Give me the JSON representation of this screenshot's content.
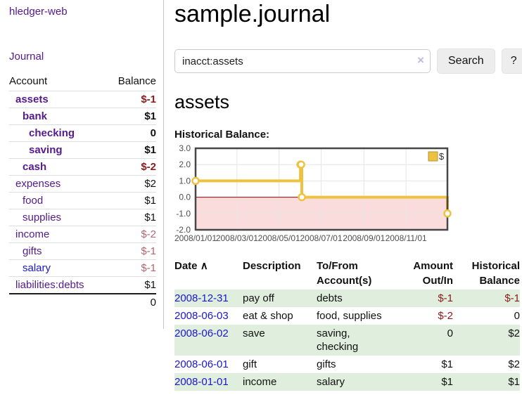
{
  "colors": {
    "purple_link": "#551a8b",
    "blue_link": "#1a16d1",
    "neg_strong": "#8b1a1a",
    "neg_dim": "#b5656f",
    "row_stripe_green": "#e0eedd",
    "chart_line_gold": "#edc240",
    "chart_point_fill": "#ffffff",
    "chart_negative_region": "#fbdcdc",
    "chart_zero_line": "#8b0000",
    "chart_grid": "#e6e6e6",
    "chart_border": "#474747"
  },
  "sidebar": {
    "brand": "hledger-web",
    "journal_link": "Journal",
    "accounts_header": {
      "account": "Account",
      "balance": "Balance"
    },
    "accounts": [
      {
        "name": "assets",
        "balance": "$-1",
        "indent": 1,
        "bold": true,
        "neg": "strong"
      },
      {
        "name": "bank",
        "balance": "$1",
        "indent": 2,
        "bold": true,
        "neg": "none"
      },
      {
        "name": "checking",
        "balance": "0",
        "indent": 3,
        "bold": true,
        "neg": "none"
      },
      {
        "name": "saving",
        "balance": "$1",
        "indent": 3,
        "bold": true,
        "neg": "none"
      },
      {
        "name": "cash",
        "balance": "$-2",
        "indent": 2,
        "bold": true,
        "neg": "strong"
      },
      {
        "name": "expenses",
        "balance": "$2",
        "indent": 1,
        "bold": false,
        "neg": "none"
      },
      {
        "name": "food",
        "balance": "$1",
        "indent": 2,
        "bold": false,
        "neg": "none"
      },
      {
        "name": "supplies",
        "balance": "$1",
        "indent": 2,
        "bold": false,
        "neg": "none"
      },
      {
        "name": "income",
        "balance": "$-2",
        "indent": 1,
        "bold": false,
        "neg": "dim"
      },
      {
        "name": "gifts",
        "balance": "$-1",
        "indent": 2,
        "bold": false,
        "neg": "dim"
      },
      {
        "name": "salary",
        "balance": "$-1",
        "indent": 2,
        "bold": false,
        "neg": "dim",
        "blue": true
      },
      {
        "name": "liabilities:debts",
        "balance": "$1",
        "indent": 1,
        "bold": false,
        "neg": "none"
      }
    ],
    "total": "0"
  },
  "main": {
    "title": "sample.journal",
    "search": {
      "value": "inacct:assets",
      "clear_icon": "×",
      "search_button": "Search",
      "help_button": "?"
    },
    "account_heading": "assets",
    "chart_title": "Historical Balance:"
  },
  "chart_data": {
    "type": "line",
    "step": true,
    "title": "Historical Balance:",
    "series": [
      {
        "name": "$",
        "color": "#edc240",
        "points": [
          [
            "2008-01-01",
            1
          ],
          [
            "2008-06-01",
            2
          ],
          [
            "2008-06-02",
            2
          ],
          [
            "2008-06-03",
            0
          ],
          [
            "2008-12-31",
            -1
          ]
        ]
      }
    ],
    "xrange": [
      "2008-01-01",
      "2008-12-31"
    ],
    "ylim": [
      -2,
      3
    ],
    "yticks": [
      3,
      2,
      1,
      0,
      -1,
      -2
    ],
    "xticks": [
      "2008/01/01",
      "2008/03/01",
      "2008/05/01",
      "2008/07/01",
      "2008/09/01",
      "2008/11/01"
    ],
    "legend": {
      "label": "$",
      "position": "top-right"
    },
    "grid": true,
    "negative_region_shaded": true
  },
  "register": {
    "header": {
      "date": "Date",
      "sort_indicator": "∧",
      "description": "Description",
      "accounts": "To/From Account(s)",
      "amount": "Amount Out/In",
      "balance": "Historical Balance"
    },
    "rows": [
      {
        "date": "2008-12-31",
        "description": "pay off",
        "accounts": "debts",
        "amount": "$-1",
        "balance": "$-1"
      },
      {
        "date": "2008-06-03",
        "description": "eat & shop",
        "accounts": "food, supplies",
        "amount": "$-2",
        "balance": "0"
      },
      {
        "date": "2008-06-02",
        "description": "save",
        "accounts": "saving, checking",
        "amount": "0",
        "balance": "$2"
      },
      {
        "date": "2008-06-01",
        "description": "gift",
        "accounts": "gifts",
        "amount": "$1",
        "balance": "$2"
      },
      {
        "date": "2008-01-01",
        "description": "income",
        "accounts": "salary",
        "amount": "$1",
        "balance": "$1"
      }
    ]
  }
}
